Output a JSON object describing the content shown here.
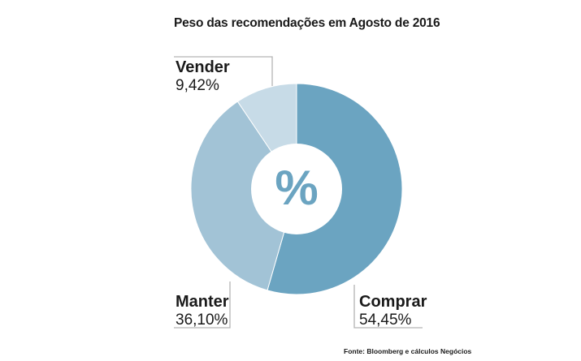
{
  "chart_data": {
    "type": "pie",
    "title": "Peso das recomendações em Agosto de 2016",
    "center_symbol": "%",
    "slices": [
      {
        "name": "Comprar",
        "value": 54.45,
        "value_label": "54,45%",
        "color": "#6ba4c1"
      },
      {
        "name": "Manter",
        "value": 36.1,
        "value_label": "36,10%",
        "color": "#a2c3d6"
      },
      {
        "name": "Vender",
        "value": 9.42,
        "value_label": "9,42%",
        "color": "#c7dbe7"
      }
    ],
    "source": "Fonte: Bloomberg e cálculos Negócios"
  }
}
